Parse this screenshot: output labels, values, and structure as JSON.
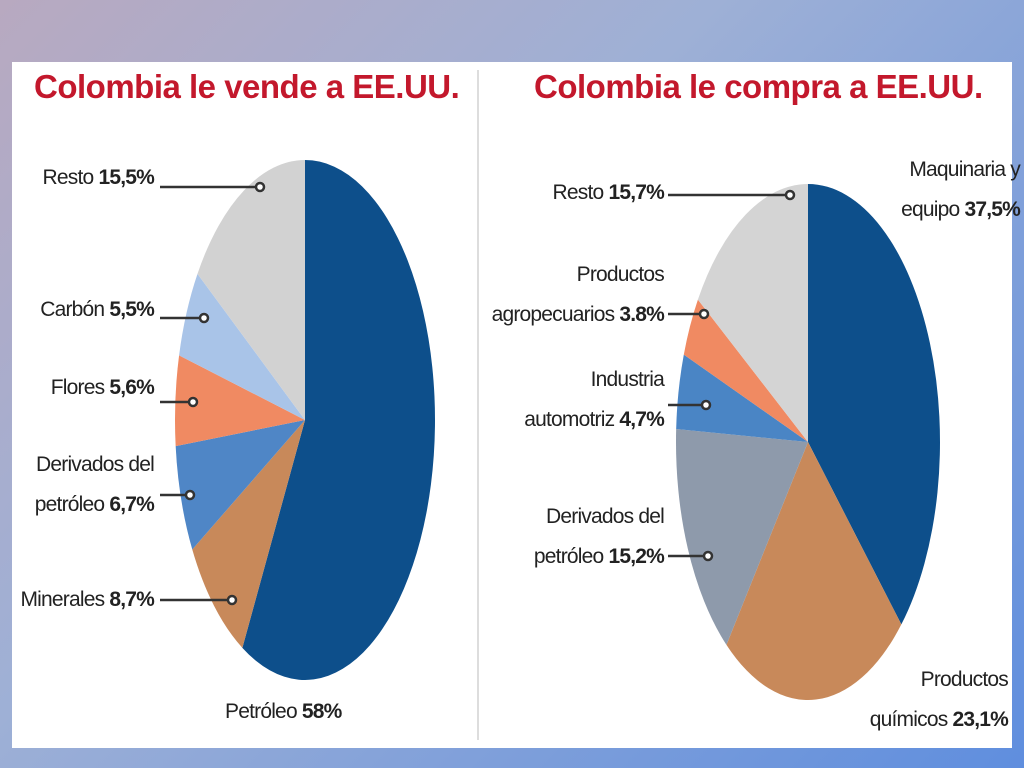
{
  "chart_data": [
    {
      "type": "pie",
      "title": "Colombia le vende a EE.UU.",
      "categories": [
        "Petróleo",
        "Minerales",
        "Derivados del petróleo",
        "Flores",
        "Carbón",
        "Resto"
      ],
      "values": [
        58,
        8.7,
        6.7,
        5.6,
        5.5,
        15.5
      ],
      "value_labels": [
        "58%",
        "8,7%",
        "6,7%",
        "5,6%",
        "5,5%",
        "15,5%"
      ],
      "colors": [
        "#0d4f8b",
        "#c8895a",
        "#4f86c6",
        "#f08a62",
        "#a9c4e8",
        "#d2d2d2"
      ]
    },
    {
      "type": "pie",
      "title": "Colombia le compra a EE.UU.",
      "categories": [
        "Maquinaria y equipo",
        "Productos químicos",
        "Derivados del petróleo",
        "Industria automotriz",
        "Productos agropecuarios",
        "Resto"
      ],
      "values": [
        37.5,
        23.1,
        15.2,
        4.7,
        3.8,
        15.7
      ],
      "value_labels": [
        "37,5%",
        "23,1%",
        "15,2%",
        "4,7%",
        "3.8%",
        "15,7%"
      ],
      "colors": [
        "#0d4f8b",
        "#c8895a",
        "#8e9aab",
        "#4a85c5",
        "#f08a62",
        "#d4d4d4"
      ]
    }
  ]
}
